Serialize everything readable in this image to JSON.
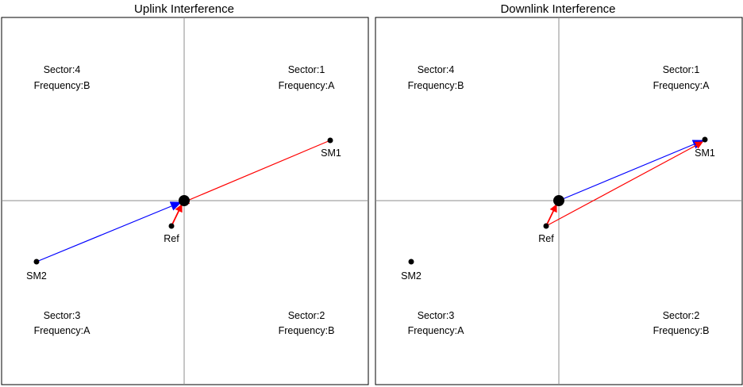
{
  "panels": [
    {
      "title": "Uplink Interference",
      "sectors": [
        {
          "sector": "Sector:4",
          "frequency": "Frequency:B"
        },
        {
          "sector": "Sector:1",
          "frequency": "Frequency:A"
        },
        {
          "sector": "Sector:3",
          "frequency": "Frequency:A"
        },
        {
          "sector": "Sector:2",
          "frequency": "Frequency:B"
        }
      ],
      "nodes": {
        "sm1": "SM1",
        "sm2": "SM2",
        "ref": "Ref"
      }
    },
    {
      "title": "Downlink Interference",
      "sectors": [
        {
          "sector": "Sector:4",
          "frequency": "Frequency:B"
        },
        {
          "sector": "Sector:1",
          "frequency": "Frequency:A"
        },
        {
          "sector": "Sector:3",
          "frequency": "Frequency:A"
        },
        {
          "sector": "Sector:2",
          "frequency": "Frequency:B"
        }
      ],
      "nodes": {
        "sm1": "SM1",
        "sm2": "SM2",
        "ref": "Ref"
      }
    }
  ],
  "colors": {
    "interference_arrow": "#ff0000",
    "signal_arrow": "#0000ff",
    "axis": "#8c8c8c",
    "frame": "#000000"
  }
}
